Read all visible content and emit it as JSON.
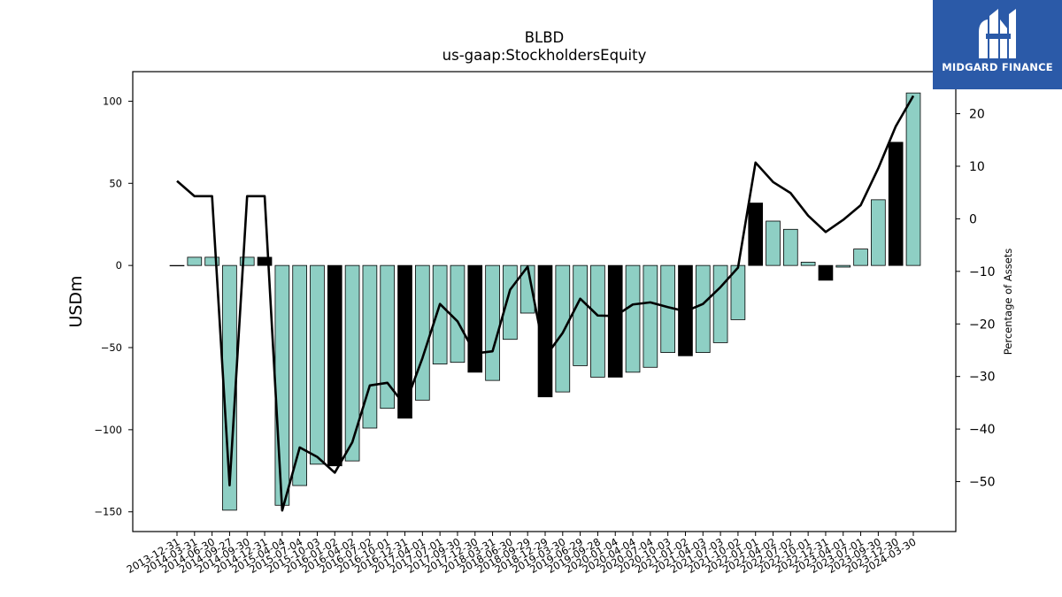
{
  "chart_data": {
    "type": "bar",
    "title": "BLBD",
    "subtitle": "us-gaap:StockholdersEquity",
    "ylabel": "USDm",
    "y2label": "Percentage of Assets",
    "ylim": [
      -162,
      118
    ],
    "y2lim": [
      -59.5,
      28
    ],
    "yticks": [
      -150,
      -100,
      -50,
      0,
      50,
      100
    ],
    "y2ticks": [
      -50,
      -40,
      -30,
      -20,
      -10,
      0,
      10,
      20
    ],
    "colors": {
      "bar": "#8ecfc4",
      "highlight": "#000000",
      "line": "#000000"
    },
    "categories": [
      "2013-12-31",
      "2014-03-31",
      "2014-06-30",
      "2014-09-27",
      "2014-09-30",
      "2014-12-31",
      "2015-04-04",
      "2015-07-04",
      "2015-10-03",
      "2016-01-02",
      "2016-04-02",
      "2016-07-02",
      "2016-10-01",
      "2016-12-31",
      "2017-04-01",
      "2017-07-01",
      "2017-09-30",
      "2017-12-30",
      "2018-03-31",
      "2018-06-30",
      "2018-09-29",
      "2018-12-29",
      "2019-03-30",
      "2019-06-29",
      "2019-09-28",
      "2020-01-04",
      "2020-04-04",
      "2020-07-04",
      "2020-10-03",
      "2021-01-02",
      "2021-04-03",
      "2021-07-03",
      "2021-10-02",
      "2022-01-01",
      "2022-04-02",
      "2022-07-02",
      "2022-10-01",
      "2022-12-31",
      "2023-04-01",
      "2023-07-01",
      "2023-09-30",
      "2023-12-30",
      "2024-03-30"
    ],
    "values": [
      0,
      5,
      5,
      -149,
      5,
      5,
      -146,
      -134,
      -121,
      -122,
      -119,
      -99,
      -87,
      -93,
      -82,
      -60,
      -59,
      -65,
      -70,
      -45,
      -29,
      -80,
      -77,
      -61,
      -68,
      -68,
      -65,
      -62,
      -53,
      -55,
      -53,
      -47,
      -33,
      38,
      27,
      22,
      2,
      -9,
      -1,
      10,
      40,
      75,
      105
    ],
    "highlight": [
      false,
      false,
      false,
      false,
      false,
      true,
      false,
      false,
      false,
      true,
      false,
      false,
      false,
      true,
      false,
      false,
      false,
      true,
      false,
      false,
      false,
      true,
      false,
      false,
      false,
      true,
      false,
      false,
      false,
      true,
      false,
      false,
      false,
      true,
      false,
      false,
      false,
      true,
      false,
      false,
      false,
      true,
      false
    ],
    "line_values": [
      7.2,
      4.3,
      4.3,
      -50.7,
      4.3,
      4.3,
      -55.5,
      -43.5,
      -45.3,
      -48.3,
      -42.5,
      -31.7,
      -31.2,
      -35.5,
      -26.5,
      -16.2,
      -19.5,
      -25.6,
      -25.2,
      -13.5,
      -9.1,
      -26.3,
      -21.7,
      -15.2,
      -18.4,
      -18.5,
      -16.3,
      -15.9,
      -16.8,
      -17.6,
      -16.2,
      -13.0,
      -9.3,
      10.7,
      7.0,
      4.9,
      0.6,
      -2.5,
      -0.2,
      2.6,
      9.6,
      17.6,
      23.4
    ]
  },
  "brand": {
    "name": "MIDGARD FINANCE"
  }
}
